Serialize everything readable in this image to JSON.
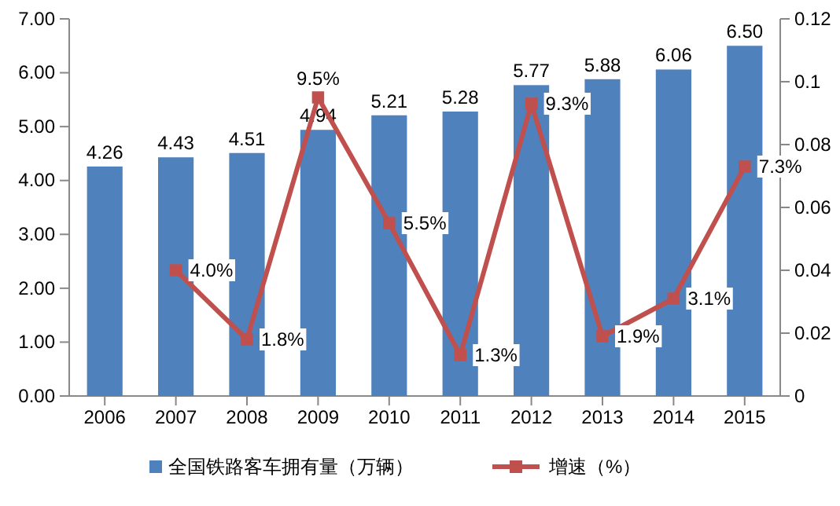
{
  "chart_data": {
    "type": "bar",
    "categories": [
      "2006",
      "2007",
      "2008",
      "2009",
      "2010",
      "2011",
      "2012",
      "2013",
      "2014",
      "2015"
    ],
    "series": [
      {
        "name": "全国铁路客车拥有量（万辆）",
        "color": "#4f81bd",
        "values": [
          4.26,
          4.43,
          4.51,
          4.94,
          5.21,
          5.28,
          5.77,
          5.88,
          6.06,
          6.5
        ],
        "value_labels": [
          "4.26",
          "4.43",
          "4.51",
          "4.94",
          "5.21",
          "5.28",
          "5.77",
          "5.88",
          "6.06",
          "6.50"
        ]
      },
      {
        "name": "增速（%）",
        "type": "line",
        "axis": "y2",
        "color": "#c0504d",
        "marker": "square",
        "values": [
          null,
          0.04,
          0.018,
          0.095,
          0.055,
          0.013,
          0.093,
          0.019,
          0.031,
          0.073
        ],
        "value_labels": [
          null,
          "4.0%",
          "1.8%",
          "9.5%",
          "5.5%",
          "1.3%",
          "9.3%",
          "1.9%",
          "3.1%",
          "7.3%"
        ]
      }
    ],
    "ylim": [
      0,
      7
    ],
    "yticks": [
      {
        "value": 0,
        "label": "0.00"
      },
      {
        "value": 1,
        "label": "1.00"
      },
      {
        "value": 2,
        "label": "2.00"
      },
      {
        "value": 3,
        "label": "3.00"
      },
      {
        "value": 4,
        "label": "4.00"
      },
      {
        "value": 5,
        "label": "5.00"
      },
      {
        "value": 6,
        "label": "6.00"
      },
      {
        "value": 7,
        "label": "7.00"
      }
    ],
    "y2lim": [
      0,
      0.12
    ],
    "y2ticks": [
      0,
      0.02,
      0.04,
      0.06,
      0.08,
      0.1,
      0.12
    ],
    "legend": "bottom",
    "grid": false
  }
}
